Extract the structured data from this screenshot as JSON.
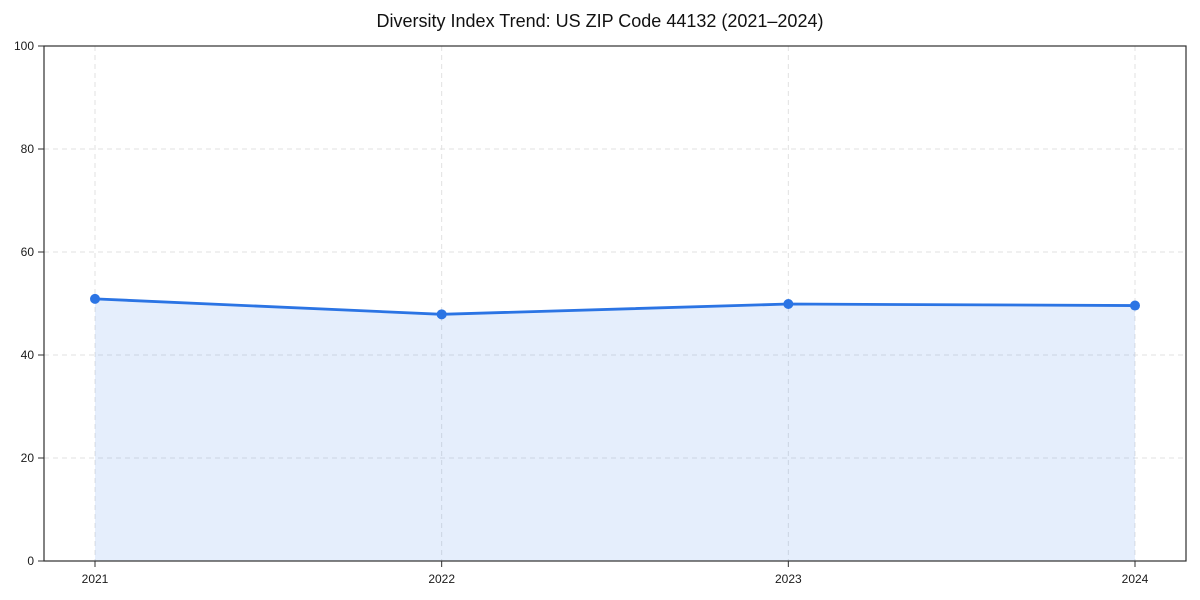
{
  "chart_data": {
    "type": "area",
    "title": "Diversity Index Trend: US ZIP Code 44132 (2021–2024)",
    "categories": [
      "2021",
      "2022",
      "2023",
      "2024"
    ],
    "series": [
      {
        "name": "Diversity Index",
        "values": [
          50.9,
          47.9,
          49.9,
          49.6
        ]
      }
    ],
    "xlabel": "",
    "ylabel": "",
    "ylim": [
      0,
      100
    ],
    "yticks": [
      0,
      20,
      40,
      60,
      80,
      100
    ],
    "grid": "dashed, both axes",
    "legend": "none",
    "marker": "circle",
    "colors": {
      "line": "#2b74e4",
      "marker": "#2b74e4",
      "fill": "rgba(43,116,228,0.12)",
      "grid": "#e2e2e2",
      "spine": "#2f2f2f",
      "tick_text": "#1a1a1a",
      "background": "#ffffff"
    }
  }
}
